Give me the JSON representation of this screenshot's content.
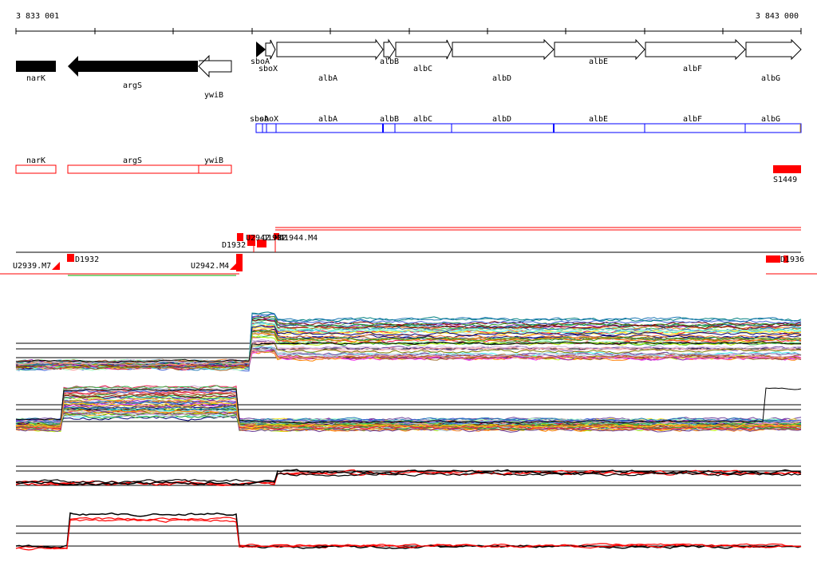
{
  "ruler": {
    "start_label": "3 833 001",
    "end_label": "3 843 000"
  },
  "colors": {
    "black": "#000000",
    "red": "#ff0000",
    "blue": "#0000ff",
    "green": "#00aa00",
    "white": "#ffffff"
  },
  "icons": {
    "strand_start": "triangle-arrow-icon"
  },
  "annotation": {
    "genes_top": [
      "narK",
      "argS",
      "ywiB"
    ],
    "genes_left_labels": [
      "sboA",
      "sboX"
    ],
    "genes_main": [
      "albA",
      "albB",
      "albC",
      "albD",
      "albE",
      "albF",
      "albG"
    ]
  },
  "coding_track": {
    "labels": [
      "sboA",
      "sboX",
      "albA",
      "albB",
      "albC",
      "albD",
      "albE",
      "albF",
      "albG"
    ]
  },
  "red_track": {
    "labels": [
      "narK",
      "argS",
      "ywiB"
    ],
    "segment_label": "S1449"
  },
  "tiling": {
    "upper_labels": [
      "D1932",
      "U2942.M4",
      "D1932",
      "D1944.M4"
    ],
    "lower_labels": [
      "U2939.M7",
      "D1932",
      "U2942.M4",
      "D1936"
    ]
  },
  "expression_panels": [
    "strand-plus-profiles",
    "strand-minus-profiles",
    "strand-plus-summary",
    "strand-minus-summary"
  ]
}
